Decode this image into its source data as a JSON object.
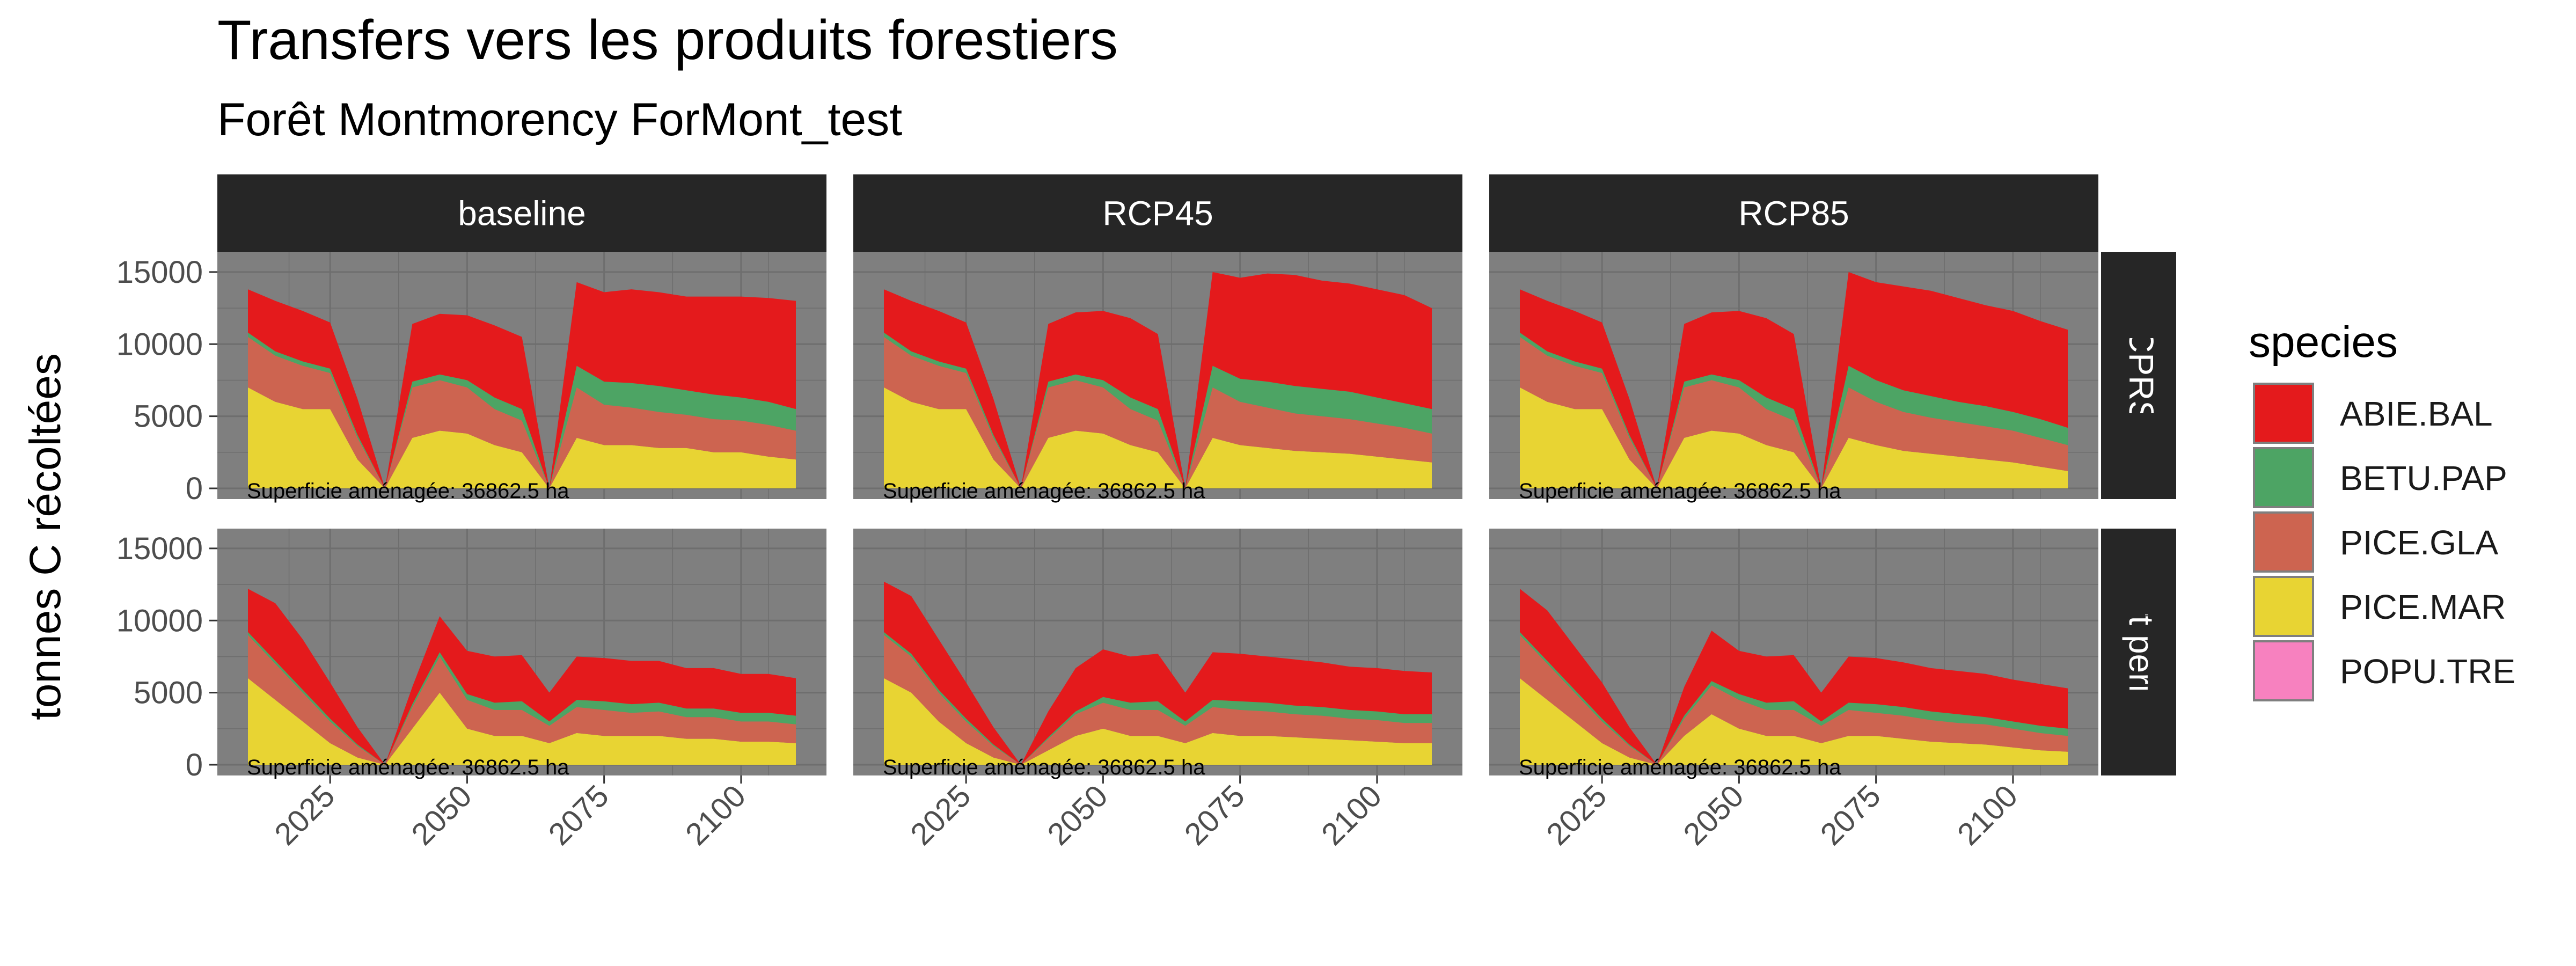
{
  "chart_data": {
    "type": "area",
    "stacked": true,
    "title": "Transfers vers les produits forestiers",
    "subtitle": "Forêt Montmorency ForMont_test",
    "ylabel": "tonnes C récoltées",
    "xlabel": "",
    "xlim": [
      2010,
      2110
    ],
    "ylim": [
      0,
      16000
    ],
    "x_ticks": [
      2025,
      2050,
      2075,
      2100
    ],
    "y_ticks": [
      0,
      5000,
      10000,
      15000
    ],
    "grid": true,
    "panel_background": "#7f7f7f",
    "grid_color": "#6e6e6e",
    "strip_background": "#262626",
    "strip_text_color": "#ffffff",
    "legend": {
      "title": "species",
      "position": "right",
      "entries": [
        {
          "label": "ABIE.BAL",
          "color": "#e41a1c"
        },
        {
          "label": "BETU.PAP",
          "color": "#4da464"
        },
        {
          "label": "PICE.GLA",
          "color": "#cd6450"
        },
        {
          "label": "PICE.MAR",
          "color": "#e8d433"
        },
        {
          "label": "POPU.TRE",
          "color": "#f781bf"
        }
      ]
    },
    "columns": [
      "baseline",
      "RCP45",
      "RCP85"
    ],
    "rows": [
      "CPRS",
      "Couvert permanent"
    ],
    "panel_note": "Superficie aménagée: 36862.5 ha",
    "x": [
      2010,
      2015,
      2020,
      2025,
      2030,
      2035,
      2040,
      2045,
      2050,
      2055,
      2060,
      2065,
      2070,
      2075,
      2080,
      2085,
      2090,
      2095,
      2100,
      2105,
      2110
    ],
    "panels": [
      {
        "column": "baseline",
        "row": "CPRS",
        "series": [
          {
            "name": "PICE.MAR",
            "values": [
              7000,
              6000,
              5500,
              5500,
              2000,
              0,
              3500,
              4000,
              3800,
              3000,
              2500,
              0,
              3500,
              3000,
              3000,
              2800,
              2800,
              2500,
              2500,
              2200,
              2000
            ]
          },
          {
            "name": "PICE.GLA",
            "values": [
              3500,
              3200,
              3000,
              2500,
              1500,
              0,
              3500,
              3500,
              3200,
              2500,
              2200,
              0,
              3500,
              2800,
              2600,
              2500,
              2300,
              2300,
              2200,
              2200,
              2000
            ]
          },
          {
            "name": "BETU.PAP",
            "values": [
              300,
              300,
              300,
              300,
              200,
              0,
              400,
              400,
              500,
              800,
              800,
              0,
              1500,
              1600,
              1700,
              1800,
              1700,
              1700,
              1600,
              1600,
              1500
            ]
          },
          {
            "name": "ABIE.BAL",
            "values": [
              3000,
              3500,
              3500,
              3200,
              2500,
              0,
              4000,
              4200,
              4500,
              5000,
              5000,
              0,
              5800,
              6200,
              6500,
              6500,
              6500,
              6800,
              7000,
              7200,
              7500
            ]
          },
          {
            "name": "POPU.TRE",
            "values": [
              0,
              0,
              0,
              0,
              0,
              0,
              0,
              0,
              0,
              0,
              0,
              0,
              0,
              0,
              0,
              0,
              0,
              0,
              0,
              0,
              0
            ]
          }
        ]
      },
      {
        "column": "RCP45",
        "row": "CPRS",
        "series": [
          {
            "name": "PICE.MAR",
            "values": [
              7000,
              6000,
              5500,
              5500,
              2000,
              0,
              3500,
              4000,
              3800,
              3000,
              2500,
              0,
              3500,
              3000,
              2800,
              2600,
              2500,
              2400,
              2200,
              2000,
              1800
            ]
          },
          {
            "name": "PICE.GLA",
            "values": [
              3500,
              3200,
              3000,
              2500,
              1500,
              0,
              3500,
              3500,
              3200,
              2500,
              2200,
              0,
              3500,
              3000,
              2800,
              2600,
              2500,
              2400,
              2300,
              2200,
              2000
            ]
          },
          {
            "name": "BETU.PAP",
            "values": [
              300,
              300,
              300,
              300,
              200,
              0,
              400,
              400,
              500,
              800,
              800,
              0,
              1500,
              1600,
              1800,
              1900,
              1900,
              1900,
              1800,
              1700,
              1700
            ]
          },
          {
            "name": "ABIE.BAL",
            "values": [
              3000,
              3500,
              3500,
              3200,
              2500,
              0,
              4000,
              4300,
              4800,
              5500,
              5200,
              0,
              6500,
              7000,
              7500,
              7700,
              7500,
              7500,
              7500,
              7500,
              7000
            ]
          },
          {
            "name": "POPU.TRE",
            "values": [
              0,
              0,
              0,
              0,
              0,
              0,
              0,
              0,
              0,
              0,
              0,
              0,
              0,
              0,
              0,
              0,
              0,
              0,
              0,
              0,
              0
            ]
          }
        ]
      },
      {
        "column": "RCP85",
        "row": "CPRS",
        "series": [
          {
            "name": "PICE.MAR",
            "values": [
              7000,
              6000,
              5500,
              5500,
              2000,
              0,
              3500,
              4000,
              3800,
              3000,
              2500,
              0,
              3500,
              3000,
              2600,
              2400,
              2200,
              2000,
              1800,
              1500,
              1200
            ]
          },
          {
            "name": "PICE.GLA",
            "values": [
              3500,
              3200,
              3000,
              2500,
              1500,
              0,
              3500,
              3500,
              3200,
              2500,
              2200,
              0,
              3500,
              3000,
              2700,
              2500,
              2400,
              2300,
              2200,
              2000,
              1800
            ]
          },
          {
            "name": "BETU.PAP",
            "values": [
              300,
              300,
              300,
              300,
              200,
              0,
              400,
              400,
              500,
              800,
              800,
              0,
              1500,
              1500,
              1500,
              1500,
              1400,
              1400,
              1300,
              1300,
              1200
            ]
          },
          {
            "name": "ABIE.BAL",
            "values": [
              3000,
              3500,
              3500,
              3200,
              2500,
              0,
              4000,
              4300,
              4800,
              5500,
              5200,
              0,
              6500,
              6800,
              7200,
              7300,
              7200,
              7000,
              7000,
              6800,
              6800
            ]
          },
          {
            "name": "POPU.TRE",
            "values": [
              0,
              0,
              0,
              0,
              0,
              0,
              0,
              0,
              0,
              0,
              0,
              0,
              0,
              0,
              0,
              0,
              0,
              0,
              0,
              0,
              0
            ]
          }
        ]
      },
      {
        "column": "baseline",
        "row": "Couvert permanent",
        "series": [
          {
            "name": "PICE.MAR",
            "values": [
              6000,
              4500,
              3000,
              1500,
              500,
              0,
              2500,
              5000,
              2500,
              2000,
              2000,
              1500,
              2200,
              2000,
              2000,
              2000,
              1800,
              1800,
              1600,
              1600,
              1500
            ]
          },
          {
            "name": "PICE.GLA",
            "values": [
              3000,
              2500,
              2000,
              1500,
              800,
              0,
              1500,
              2500,
              2000,
              1800,
              1800,
              1200,
              1800,
              1800,
              1600,
              1700,
              1500,
              1500,
              1400,
              1400,
              1300
            ]
          },
          {
            "name": "BETU.PAP",
            "values": [
              200,
              200,
              200,
              200,
              100,
              0,
              200,
              300,
              400,
              500,
              600,
              300,
              500,
              600,
              600,
              600,
              600,
              600,
              600,
              600,
              600
            ]
          },
          {
            "name": "ABIE.BAL",
            "values": [
              3000,
              4000,
              3500,
              2500,
              1200,
              0,
              1200,
              2500,
              3000,
              3200,
              3200,
              2000,
              3000,
              3000,
              3000,
              2900,
              2800,
              2800,
              2700,
              2700,
              2600
            ]
          },
          {
            "name": "POPU.TRE",
            "values": [
              0,
              0,
              0,
              0,
              0,
              0,
              0,
              0,
              0,
              0,
              0,
              0,
              0,
              0,
              0,
              0,
              0,
              0,
              0,
              0,
              0
            ]
          }
        ]
      },
      {
        "column": "RCP45",
        "row": "Couvert permanent",
        "series": [
          {
            "name": "PICE.MAR",
            "values": [
              6000,
              5000,
              3000,
              1500,
              500,
              0,
              1000,
              2000,
              2500,
              2000,
              2000,
              1500,
              2200,
              2000,
              2000,
              1900,
              1800,
              1700,
              1600,
              1500,
              1500
            ]
          },
          {
            "name": "PICE.GLA",
            "values": [
              3000,
              2500,
              2000,
              1500,
              800,
              0,
              800,
              1500,
              1800,
              1800,
              1800,
              1200,
              1800,
              1800,
              1700,
              1600,
              1600,
              1500,
              1500,
              1400,
              1400
            ]
          },
          {
            "name": "BETU.PAP",
            "values": [
              200,
              200,
              200,
              200,
              100,
              0,
              100,
              200,
              400,
              500,
              600,
              300,
              500,
              600,
              600,
              600,
              600,
              600,
              600,
              600,
              600
            ]
          },
          {
            "name": "ABIE.BAL",
            "values": [
              3500,
              4000,
              3500,
              2500,
              1200,
              0,
              1800,
              3000,
              3300,
              3200,
              3300,
              2000,
              3300,
              3300,
              3200,
              3200,
              3100,
              3000,
              3000,
              3000,
              2900
            ]
          },
          {
            "name": "POPU.TRE",
            "values": [
              0,
              0,
              0,
              0,
              0,
              0,
              0,
              0,
              0,
              0,
              0,
              0,
              0,
              0,
              0,
              0,
              0,
              0,
              0,
              0,
              0
            ]
          }
        ]
      },
      {
        "column": "RCP85",
        "row": "Couvert permanent",
        "series": [
          {
            "name": "PICE.MAR",
            "values": [
              6000,
              4500,
              3000,
              1500,
              500,
              0,
              2000,
              3500,
              2500,
              2000,
              2000,
              1500,
              2000,
              2000,
              1800,
              1600,
              1500,
              1400,
              1200,
              1000,
              900
            ]
          },
          {
            "name": "PICE.GLA",
            "values": [
              3000,
              2500,
              2000,
              1500,
              800,
              0,
              1200,
              2000,
              2000,
              1800,
              1800,
              1200,
              1800,
              1600,
              1600,
              1500,
              1400,
              1400,
              1300,
              1200,
              1100
            ]
          },
          {
            "name": "BETU.PAP",
            "values": [
              200,
              200,
              200,
              200,
              100,
              0,
              200,
              300,
              400,
              500,
              600,
              300,
              500,
              600,
              600,
              600,
              600,
              500,
              500,
              500,
              500
            ]
          },
          {
            "name": "ABIE.BAL",
            "values": [
              3000,
              3500,
              3000,
              2500,
              1200,
              0,
              2000,
              3500,
              3000,
              3200,
              3200,
              2000,
              3200,
              3200,
              3100,
              3000,
              3000,
              3000,
              2900,
              2900,
              2800
            ]
          },
          {
            "name": "POPU.TRE",
            "values": [
              0,
              0,
              0,
              0,
              0,
              0,
              0,
              0,
              0,
              0,
              0,
              0,
              0,
              0,
              0,
              0,
              0,
              0,
              0,
              0,
              0
            ]
          }
        ]
      }
    ]
  }
}
